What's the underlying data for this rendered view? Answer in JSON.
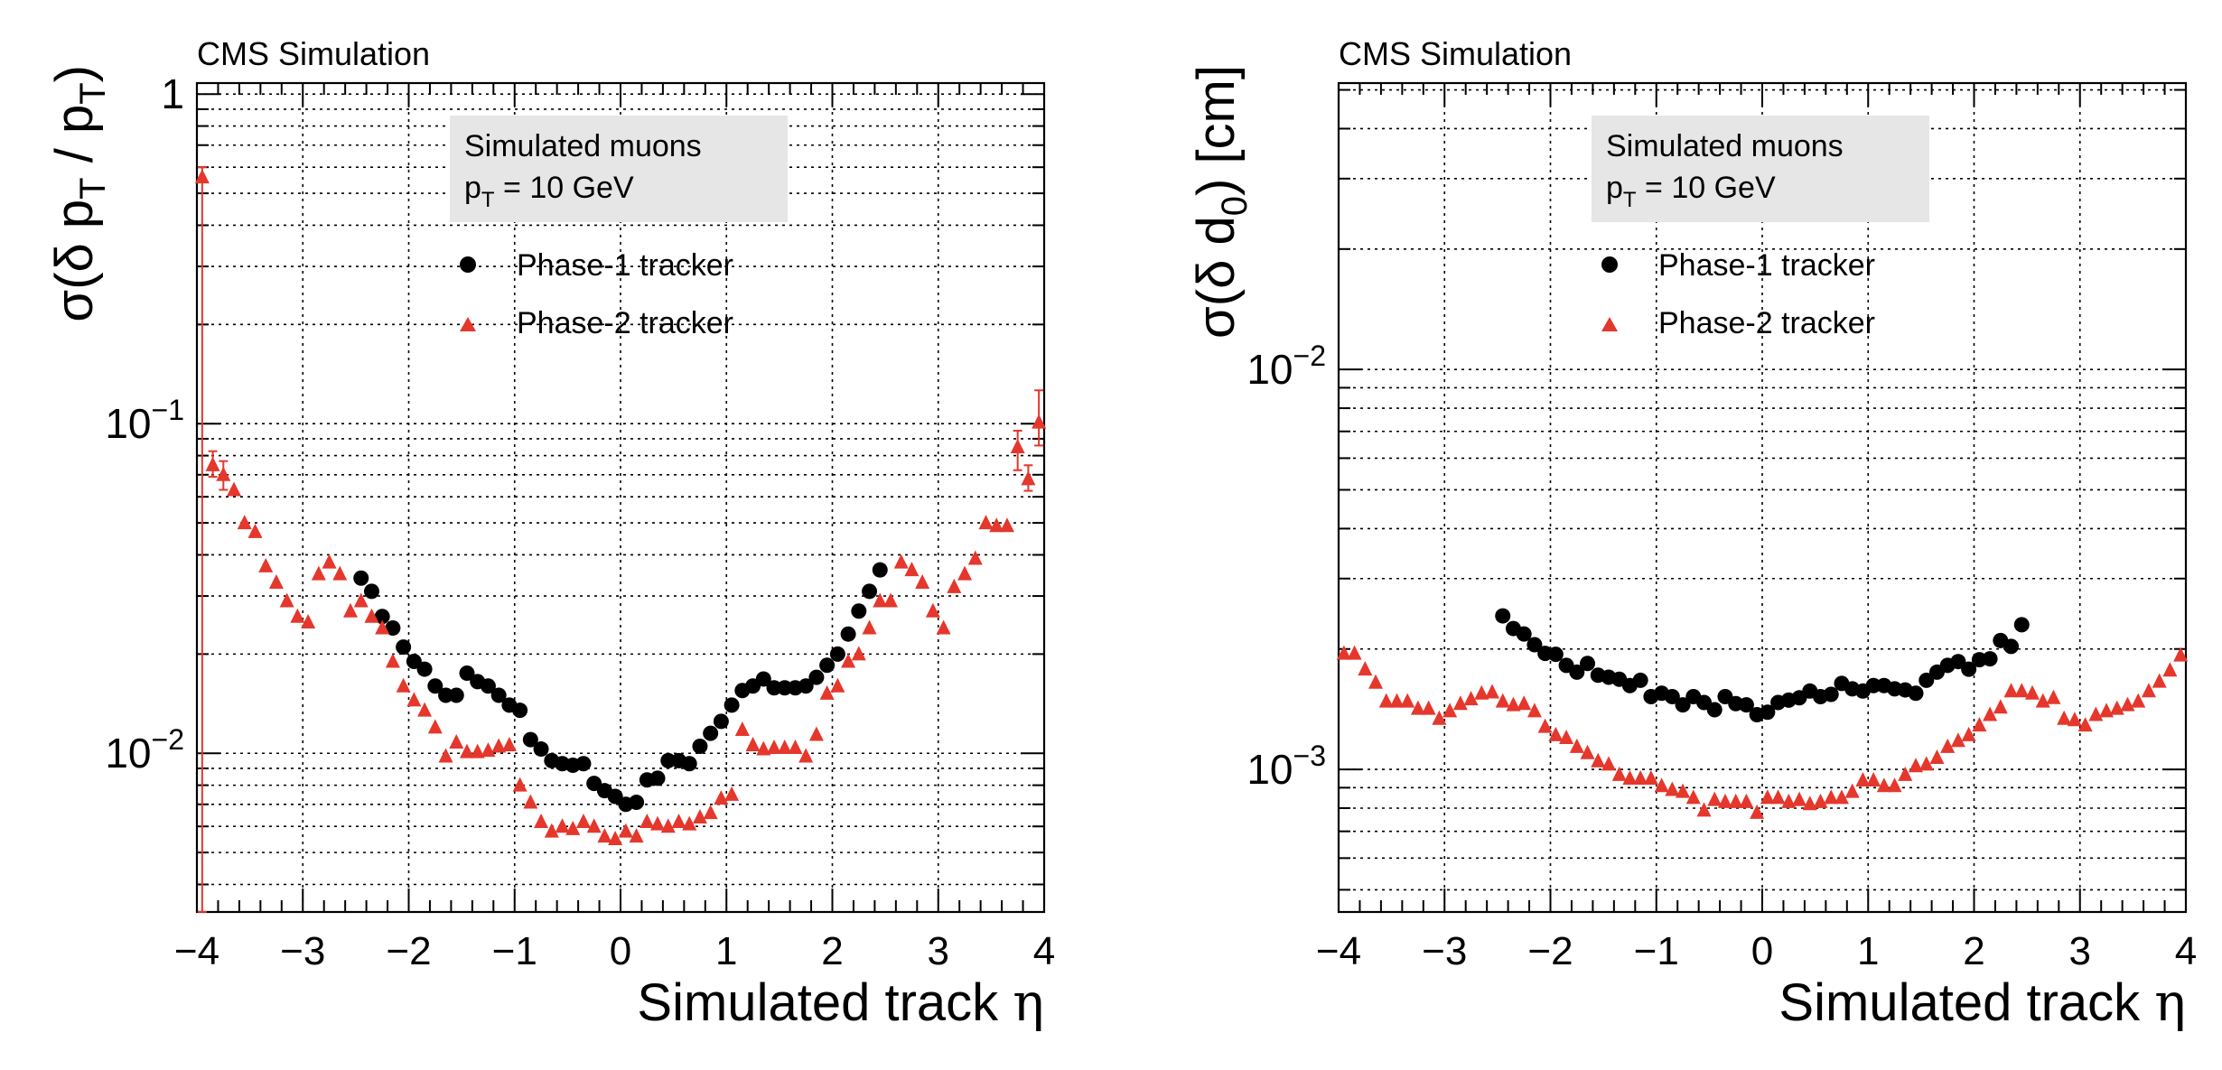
{
  "colors": {
    "phase1": "#000000",
    "phase2": "#e5372c",
    "legend_box": "#e6e6e6",
    "background": "#ffffff"
  },
  "chart_data": [
    {
      "type": "scatter",
      "id": "left",
      "label": "CMS Simulation",
      "info_lines": [
        "Simulated muons",
        "p_T = 10 GeV"
      ],
      "xlabel": "Simulated track η",
      "ylabel": "σ(δ p_T / p_T)",
      "yscale": "log",
      "xlim": [
        -4,
        4
      ],
      "ylim": [
        0.0033,
        1.08
      ],
      "x_ticks": [
        -4,
        -3,
        -2,
        -1,
        0,
        1,
        2,
        3,
        4
      ],
      "x_tick_labels": [
        "−4",
        "−3",
        "−2",
        "−1",
        "0",
        "1",
        "2",
        "3",
        "4"
      ],
      "y_major_ticks": [
        {
          "value": 1,
          "base": "1",
          "exp": ""
        },
        {
          "value": 0.1,
          "base": "10",
          "exp": "−1"
        },
        {
          "value": 0.01,
          "base": "10",
          "exp": "−2"
        }
      ],
      "grid": true,
      "series": [
        {
          "name": "Phase-1 tracker",
          "marker": "circle",
          "color": "#000000",
          "x": [
            -2.45,
            -2.35,
            -2.25,
            -2.15,
            -2.05,
            -1.95,
            -1.85,
            -1.75,
            -1.65,
            -1.55,
            -1.45,
            -1.35,
            -1.25,
            -1.15,
            -1.05,
            -0.95,
            -0.85,
            -0.75,
            -0.65,
            -0.55,
            -0.45,
            -0.35,
            -0.25,
            -0.15,
            -0.05,
            0.05,
            0.15,
            0.25,
            0.35,
            0.45,
            0.55,
            0.65,
            0.75,
            0.85,
            0.95,
            1.05,
            1.15,
            1.25,
            1.35,
            1.45,
            1.55,
            1.65,
            1.75,
            1.85,
            1.95,
            2.05,
            2.15,
            2.25,
            2.35,
            2.45
          ],
          "y": [
            0.034,
            0.031,
            0.026,
            0.024,
            0.021,
            0.019,
            0.018,
            0.016,
            0.015,
            0.015,
            0.0175,
            0.0165,
            0.016,
            0.015,
            0.014,
            0.0135,
            0.011,
            0.0103,
            0.0095,
            0.0093,
            0.0092,
            0.0093,
            0.0081,
            0.0077,
            0.0074,
            0.007,
            0.0071,
            0.0083,
            0.0084,
            0.0095,
            0.0095,
            0.0093,
            0.0105,
            0.0115,
            0.0125,
            0.014,
            0.0155,
            0.016,
            0.0168,
            0.0158,
            0.0158,
            0.0158,
            0.016,
            0.017,
            0.0185,
            0.02,
            0.023,
            0.027,
            0.031,
            0.036
          ]
        },
        {
          "name": "Phase-2 tracker",
          "marker": "triangle",
          "color": "#e5372c",
          "x": [
            -3.95,
            -3.85,
            -3.75,
            -3.65,
            -3.55,
            -3.45,
            -3.35,
            -3.25,
            -3.15,
            -3.05,
            -2.95,
            -2.85,
            -2.75,
            -2.65,
            -2.55,
            -2.45,
            -2.35,
            -2.25,
            -2.15,
            -2.05,
            -1.95,
            -1.85,
            -1.75,
            -1.65,
            -1.55,
            -1.45,
            -1.35,
            -1.25,
            -1.15,
            -1.05,
            -0.95,
            -0.85,
            -0.75,
            -0.65,
            -0.55,
            -0.45,
            -0.35,
            -0.25,
            -0.15,
            -0.05,
            0.05,
            0.15,
            0.25,
            0.35,
            0.45,
            0.55,
            0.65,
            0.75,
            0.85,
            0.95,
            1.05,
            1.15,
            1.25,
            1.35,
            1.45,
            1.55,
            1.65,
            1.75,
            1.85,
            1.95,
            2.05,
            2.15,
            2.25,
            2.35,
            2.45,
            2.55,
            2.65,
            2.75,
            2.85,
            2.95,
            3.05,
            3.15,
            3.25,
            3.35,
            3.45,
            3.55,
            3.65,
            3.75,
            3.85,
            3.95
          ],
          "y": [
            0.56,
            0.075,
            0.07,
            0.063,
            0.05,
            0.047,
            0.037,
            0.033,
            0.029,
            0.026,
            0.025,
            0.035,
            0.038,
            0.035,
            0.027,
            0.029,
            0.026,
            0.024,
            0.019,
            0.016,
            0.0145,
            0.0135,
            0.012,
            0.0098,
            0.0108,
            0.0101,
            0.0101,
            0.0102,
            0.0105,
            0.0106,
            0.008,
            0.0071,
            0.0062,
            0.0058,
            0.006,
            0.0059,
            0.0062,
            0.006,
            0.0056,
            0.0055,
            0.0058,
            0.0056,
            0.0062,
            0.0061,
            0.006,
            0.0062,
            0.0061,
            0.0064,
            0.0066,
            0.0073,
            0.0075,
            0.0118,
            0.0106,
            0.0103,
            0.0104,
            0.0104,
            0.0104,
            0.0098,
            0.0114,
            0.0152,
            0.016,
            0.019,
            0.02,
            0.024,
            0.029,
            0.029,
            0.038,
            0.036,
            0.033,
            0.027,
            0.024,
            0.032,
            0.035,
            0.039,
            0.05,
            0.049,
            0.049,
            0.085,
            0.068,
            0.101
          ]
        }
      ]
    },
    {
      "type": "scatter",
      "id": "right",
      "label": "CMS Simulation",
      "info_lines": [
        "Simulated muons",
        "p_T = 10 GeV"
      ],
      "xlabel": "Simulated track η",
      "ylabel": "σ(δ d_0) [cm]",
      "yscale": "log",
      "xlim": [
        -4,
        4
      ],
      "ylim": [
        0.00044,
        0.052
      ],
      "x_ticks": [
        -4,
        -3,
        -2,
        -1,
        0,
        1,
        2,
        3,
        4
      ],
      "x_tick_labels": [
        "−4",
        "−3",
        "−2",
        "−1",
        "0",
        "1",
        "2",
        "3",
        "4"
      ],
      "y_major_ticks": [
        {
          "value": 0.01,
          "base": "10",
          "exp": "−2"
        },
        {
          "value": 0.001,
          "base": "10",
          "exp": "−3"
        }
      ],
      "grid": true,
      "series": [
        {
          "name": "Phase-1 tracker",
          "marker": "circle",
          "color": "#000000",
          "x": [
            -2.45,
            -2.35,
            -2.25,
            -2.15,
            -2.05,
            -1.95,
            -1.85,
            -1.75,
            -1.65,
            -1.55,
            -1.45,
            -1.35,
            -1.25,
            -1.15,
            -1.05,
            -0.95,
            -0.85,
            -0.75,
            -0.65,
            -0.55,
            -0.45,
            -0.35,
            -0.25,
            -0.15,
            -0.05,
            0.05,
            0.15,
            0.25,
            0.35,
            0.45,
            0.55,
            0.65,
            0.75,
            0.85,
            0.95,
            1.05,
            1.15,
            1.25,
            1.35,
            1.45,
            1.55,
            1.65,
            1.75,
            1.85,
            1.95,
            2.05,
            2.15,
            2.25,
            2.35,
            2.45
          ],
          "y": [
            0.00242,
            0.00225,
            0.00218,
            0.00205,
            0.00195,
            0.00194,
            0.00182,
            0.00175,
            0.00184,
            0.00172,
            0.0017,
            0.00168,
            0.00162,
            0.00167,
            0.00152,
            0.00155,
            0.00152,
            0.00145,
            0.00152,
            0.00147,
            0.00141,
            0.00152,
            0.00146,
            0.00145,
            0.00137,
            0.00139,
            0.00147,
            0.00149,
            0.00151,
            0.00157,
            0.00152,
            0.00154,
            0.00164,
            0.00159,
            0.00157,
            0.00162,
            0.00162,
            0.00159,
            0.00158,
            0.00155,
            0.00167,
            0.00175,
            0.00182,
            0.00186,
            0.00178,
            0.00188,
            0.00189,
            0.0021,
            0.00203,
            0.0023
          ]
        },
        {
          "name": "Phase-2 tracker",
          "marker": "triangle",
          "color": "#e5372c",
          "x": [
            -3.95,
            -3.85,
            -3.75,
            -3.65,
            -3.55,
            -3.45,
            -3.35,
            -3.25,
            -3.15,
            -3.05,
            -2.95,
            -2.85,
            -2.75,
            -2.65,
            -2.55,
            -2.45,
            -2.35,
            -2.25,
            -2.15,
            -2.05,
            -1.95,
            -1.85,
            -1.75,
            -1.65,
            -1.55,
            -1.45,
            -1.35,
            -1.25,
            -1.15,
            -1.05,
            -0.95,
            -0.85,
            -0.75,
            -0.65,
            -0.55,
            -0.45,
            -0.35,
            -0.25,
            -0.15,
            -0.05,
            0.05,
            0.15,
            0.25,
            0.35,
            0.45,
            0.55,
            0.65,
            0.75,
            0.85,
            0.95,
            1.05,
            1.15,
            1.25,
            1.35,
            1.45,
            1.55,
            1.65,
            1.75,
            1.85,
            1.95,
            2.05,
            2.15,
            2.25,
            2.35,
            2.45,
            2.55,
            2.65,
            2.75,
            2.85,
            2.95,
            3.05,
            3.15,
            3.25,
            3.35,
            3.45,
            3.55,
            3.65,
            3.75,
            3.85,
            3.95
          ],
          "y": [
            0.00195,
            0.00195,
            0.00178,
            0.00165,
            0.00148,
            0.00148,
            0.00148,
            0.00142,
            0.00142,
            0.00134,
            0.0014,
            0.00146,
            0.0015,
            0.00155,
            0.00156,
            0.00148,
            0.00145,
            0.00146,
            0.0014,
            0.00128,
            0.00122,
            0.0012,
            0.00114,
            0.0011,
            0.00105,
            0.00103,
            0.00097,
            0.00095,
            0.00095,
            0.00095,
            0.00091,
            0.00089,
            0.00088,
            0.00085,
            0.00079,
            0.00084,
            0.00083,
            0.00083,
            0.00083,
            0.00078,
            0.00085,
            0.00085,
            0.00083,
            0.00084,
            0.00082,
            0.00083,
            0.00085,
            0.00085,
            0.00088,
            0.00094,
            0.00094,
            0.00091,
            0.00091,
            0.00097,
            0.00102,
            0.00103,
            0.00107,
            0.00114,
            0.00118,
            0.00122,
            0.00129,
            0.00137,
            0.00143,
            0.00157,
            0.00157,
            0.00155,
            0.00148,
            0.00151,
            0.00134,
            0.00133,
            0.00129,
            0.00137,
            0.0014,
            0.00142,
            0.00145,
            0.00148,
            0.00157,
            0.00166,
            0.00177,
            0.00193
          ]
        }
      ]
    }
  ]
}
